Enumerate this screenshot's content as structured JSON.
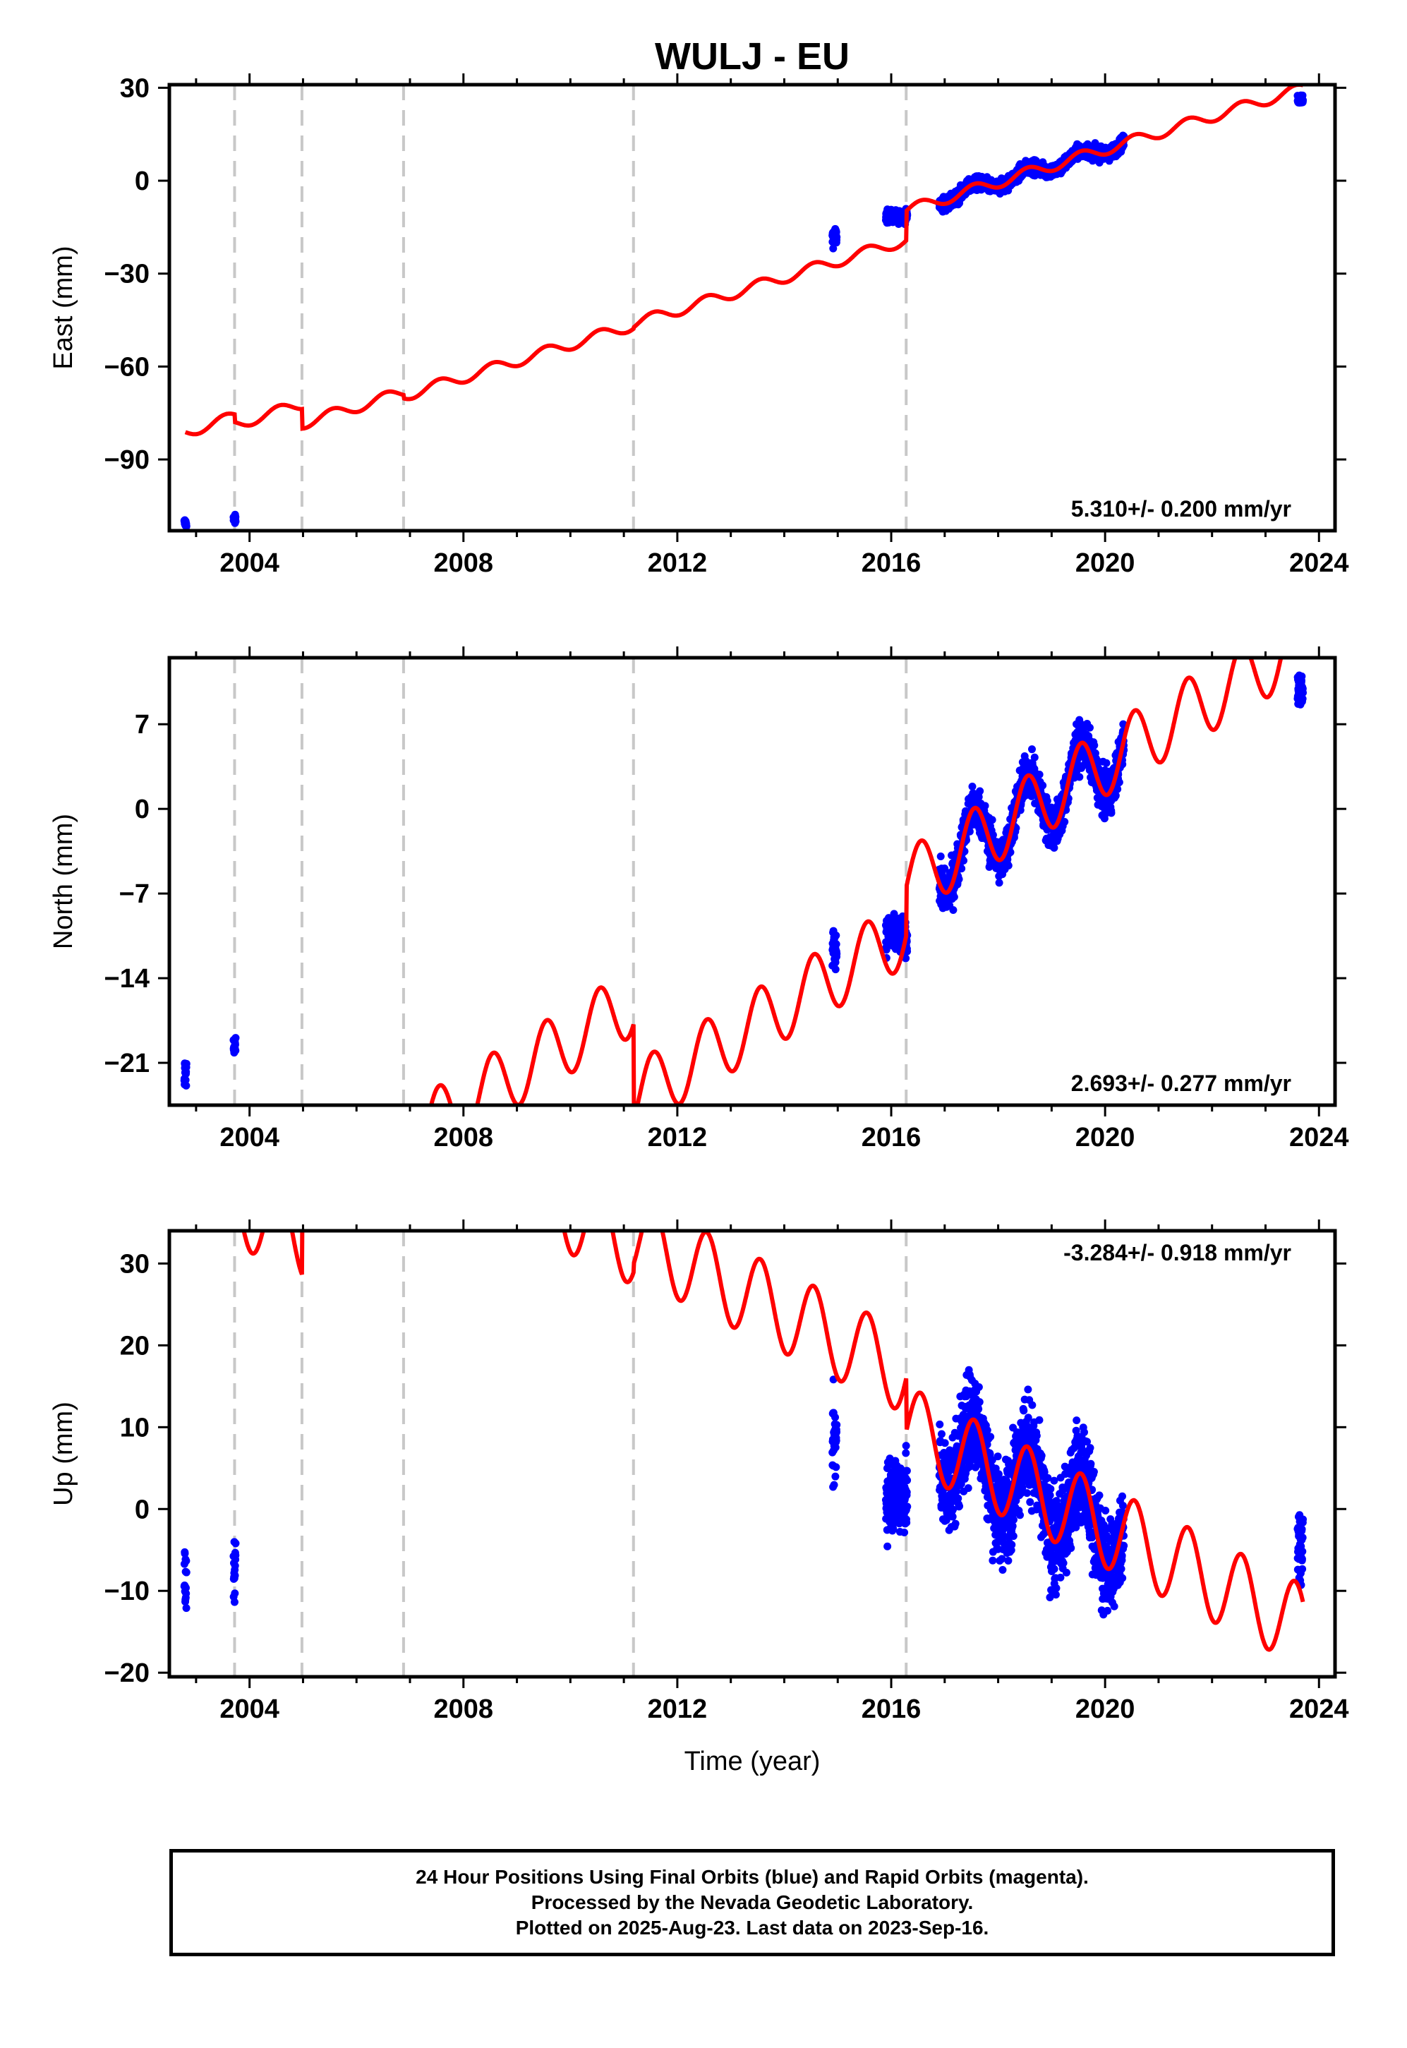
{
  "title": "WULJ - EU",
  "x_label": "Time (year)",
  "caption": [
    "24 Hour Positions Using Final Orbits (blue) and Rapid Orbits (magenta).",
    "Processed by the Nevada Geodetic Laboratory.",
    "Plotted on 2025-Aug-23. Last data on 2023-Sep-16."
  ],
  "colors": {
    "observations": "#0000ff",
    "model": "#ff0000",
    "offset_lines": "#c8c8c8",
    "axes": "#000000"
  },
  "chart_data": [
    {
      "type": "scatter",
      "component": "East",
      "ylabel": "East (mm)",
      "rate_label": "5.310+/- 0.200 mm/yr",
      "rate_position": "bottom-right",
      "xlim": [
        2002.5,
        2024.3
      ],
      "ylim": [
        -113,
        31
      ],
      "x_ticks": [
        2004,
        2008,
        2012,
        2016,
        2020,
        2024
      ],
      "y_ticks": [
        30,
        0,
        -30,
        -60,
        -90
      ],
      "offset_epochs": [
        2003.72,
        2004.98,
        2006.88,
        2011.18,
        2016.28
      ],
      "model": {
        "rate": 5.31,
        "ref_epoch": 2019.5,
        "intercept": 7.5,
        "segment_offsets": [
          0,
          2.5,
          8.8,
          9.9,
          9.5,
          0
        ],
        "annual_amplitude": 1.8,
        "start_epoch": 2002.8,
        "end_epoch": 2023.7
      },
      "observations": [
        {
          "start": 2002.78,
          "end": 2002.82,
          "value": -110.5,
          "spread": 1.5
        },
        {
          "start": 2003.7,
          "end": 2003.74,
          "value": -109.5,
          "spread": 1.5
        },
        {
          "start": 2014.9,
          "end": 2014.98,
          "value": -18,
          "spread": 3
        },
        {
          "start": 2015.9,
          "end": 2016.3,
          "value": -11.5,
          "spread": 2
        },
        {
          "start": 2016.9,
          "end": 2020.35,
          "value": 0,
          "spread": 2.2
        },
        {
          "start": 2023.6,
          "end": 2023.7,
          "value": 26.5,
          "spread": 1.5
        }
      ]
    },
    {
      "type": "scatter",
      "component": "North",
      "ylabel": "North (mm)",
      "rate_label": "2.693+/- 0.277 mm/yr",
      "rate_position": "bottom-right",
      "xlim": [
        2002.5,
        2024.3
      ],
      "ylim": [
        -24.5,
        12.5
      ],
      "x_ticks": [
        2004,
        2008,
        2012,
        2016,
        2020,
        2024
      ],
      "y_ticks": [
        7,
        0,
        -7,
        -14,
        -21
      ],
      "offset_epochs": [
        2003.72,
        2004.98,
        2006.88,
        2011.18,
        2016.28
      ],
      "model": {
        "rate": 2.693,
        "ref_epoch": 2019.5,
        "intercept": 2.5,
        "segment_offsets": [
          0,
          4.0,
          -2.0,
          -4.0,
          4.0,
          0
        ],
        "annual_amplitude": 2.8,
        "start_epoch": 2002.8,
        "end_epoch": 2023.7
      },
      "observations": [
        {
          "start": 2002.78,
          "end": 2002.82,
          "value": -22,
          "spread": 1.3
        },
        {
          "start": 2003.7,
          "end": 2003.74,
          "value": -19.5,
          "spread": 0.8
        },
        {
          "start": 2014.9,
          "end": 2014.98,
          "value": -11.5,
          "spread": 1.5
        },
        {
          "start": 2015.9,
          "end": 2016.3,
          "value": -10.5,
          "spread": 1.5
        },
        {
          "start": 2016.9,
          "end": 2020.35,
          "value": 0.5,
          "spread": 1.8
        },
        {
          "start": 2023.6,
          "end": 2023.7,
          "value": 10,
          "spread": 1.2
        }
      ]
    },
    {
      "type": "scatter",
      "component": "Up",
      "ylabel": "Up (mm)",
      "rate_label": "-3.284+/- 0.918 mm/yr",
      "rate_position": "top-right",
      "xlim": [
        2002.5,
        2024.3
      ],
      "ylim": [
        -20.5,
        34
      ],
      "x_ticks": [
        2004,
        2008,
        2012,
        2016,
        2020,
        2024
      ],
      "y_ticks": [
        30,
        20,
        10,
        0,
        -10,
        -20
      ],
      "offset_epochs": [
        2003.72,
        2004.98,
        2006.88,
        2011.18,
        2016.28
      ],
      "model": {
        "rate": -3.284,
        "ref_epoch": 2019.5,
        "intercept": -0.5,
        "segment_offsets": [
          -14,
          -14,
          -4,
          5.5,
          6.5,
          0
        ],
        "annual_amplitude": 5,
        "start_epoch": 2002.8,
        "end_epoch": 2023.7
      },
      "observations": [
        {
          "start": 2002.78,
          "end": 2002.82,
          "value": -9,
          "spread": 4
        },
        {
          "start": 2003.7,
          "end": 2003.74,
          "value": -8,
          "spread": 3
        },
        {
          "start": 2014.9,
          "end": 2014.98,
          "value": 8,
          "spread": 6
        },
        {
          "start": 2015.9,
          "end": 2016.3,
          "value": 2,
          "spread": 5
        },
        {
          "start": 2016.9,
          "end": 2020.35,
          "value": 0,
          "spread": 6
        },
        {
          "start": 2023.6,
          "end": 2023.7,
          "value": -4,
          "spread": 4
        }
      ]
    }
  ]
}
